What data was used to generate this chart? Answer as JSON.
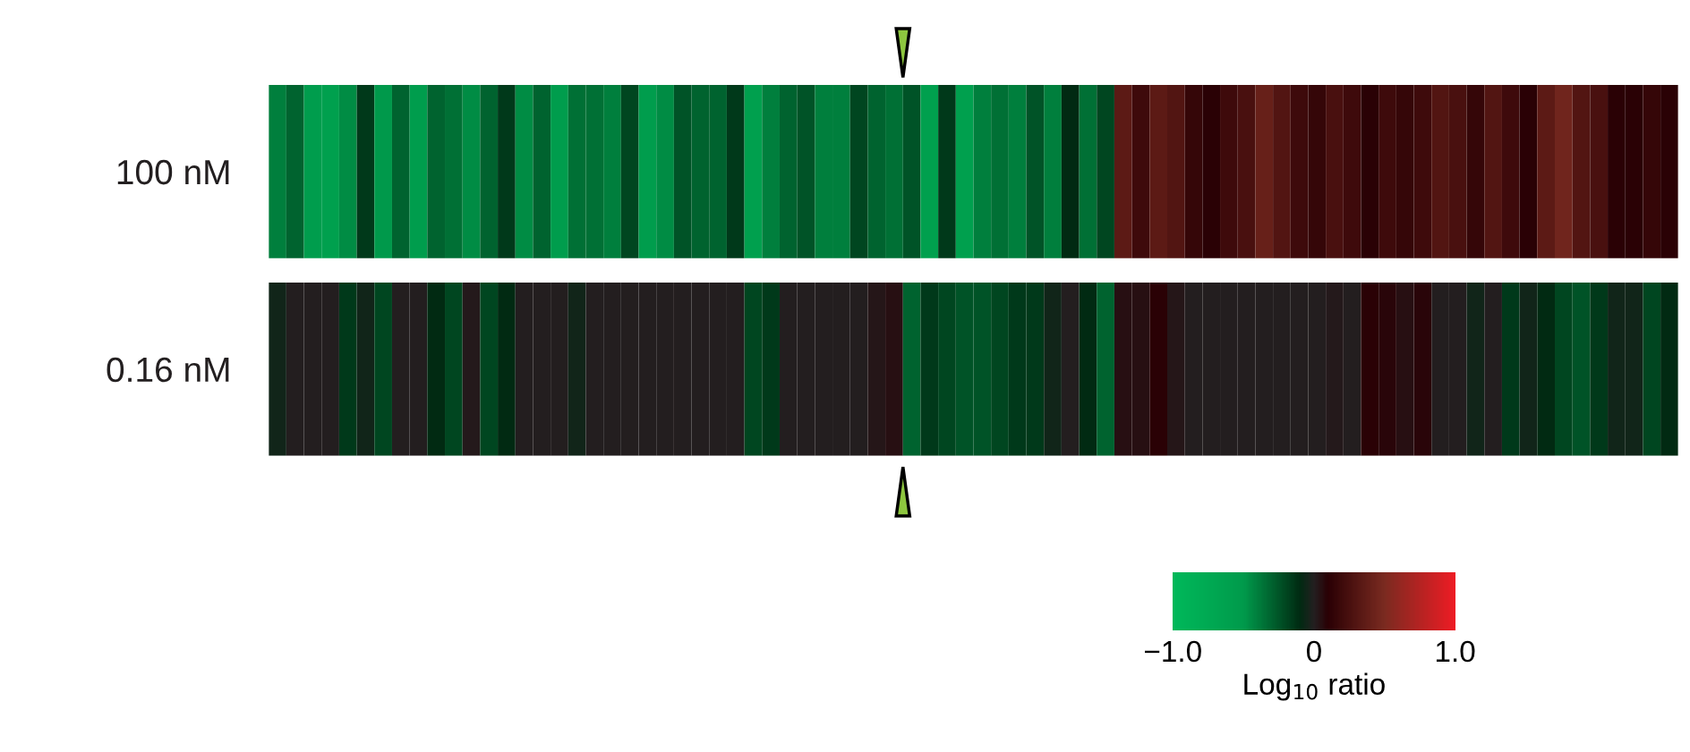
{
  "chart_data": {
    "type": "heatmap",
    "categories": [
      null,
      null,
      null,
      null,
      null,
      null,
      null,
      null,
      null,
      null,
      null,
      null,
      null,
      null,
      null,
      null,
      null,
      null,
      null,
      null,
      null,
      null,
      null,
      null,
      null,
      null,
      null,
      null,
      null,
      null,
      null,
      null,
      null,
      null,
      null,
      null,
      null,
      null,
      null,
      null,
      null,
      null,
      null,
      null,
      null,
      null,
      null,
      null,
      null,
      null,
      null,
      null,
      null,
      null,
      null,
      null,
      null,
      null,
      null,
      null,
      null,
      null,
      null,
      null,
      null,
      null,
      null,
      null,
      null,
      null,
      null,
      null,
      null,
      null,
      null,
      null,
      null,
      null,
      null,
      null
    ],
    "y_categories": [
      "100 nM",
      "0.16 nM"
    ],
    "cells": [
      [
        -0.4,
        -0.3,
        -0.55,
        -0.6,
        -0.45,
        -0.15,
        -0.5,
        -0.3,
        -0.55,
        -0.3,
        -0.35,
        -0.45,
        -0.3,
        -0.15,
        -0.45,
        -0.3,
        -0.55,
        -0.35,
        -0.35,
        -0.4,
        -0.2,
        -0.55,
        -0.45,
        -0.25,
        -0.3,
        -0.3,
        -0.15,
        -0.6,
        -0.4,
        -0.3,
        -0.25,
        -0.4,
        -0.4,
        -0.2,
        -0.3,
        -0.35,
        -0.25,
        -0.6,
        -0.15,
        -0.6,
        -0.4,
        -0.35,
        -0.4,
        -0.25,
        -0.4,
        -0.1,
        -0.35,
        -0.2,
        0.35,
        0.2,
        0.35,
        0.3,
        0.15,
        0.1,
        0.2,
        0.25,
        0.4,
        0.3,
        0.2,
        0.15,
        0.25,
        0.2,
        0.1,
        0.2,
        0.15,
        0.2,
        0.3,
        0.25,
        0.15,
        0.3,
        0.2,
        0.1,
        0.35,
        0.45,
        0.3,
        0.25,
        0.1,
        0.1,
        0.15,
        0.1
      ],
      [
        -0.05,
        0,
        0,
        0,
        -0.15,
        -0.05,
        -0.2,
        0,
        0,
        -0.1,
        -0.2,
        0.02,
        -0.2,
        -0.1,
        0,
        0,
        0,
        -0.05,
        0,
        0,
        0,
        0,
        0,
        0,
        0,
        0,
        0,
        -0.2,
        -0.15,
        0,
        0,
        0,
        0,
        0,
        0.03,
        0.05,
        -0.3,
        -0.15,
        -0.2,
        -0.25,
        -0.25,
        -0.2,
        -0.15,
        -0.15,
        -0.05,
        0,
        -0.1,
        -0.3,
        0.05,
        0.05,
        0.1,
        0.03,
        0,
        0,
        0,
        0,
        0,
        0,
        0,
        0,
        0.02,
        0,
        0.1,
        0.08,
        0.05,
        0.08,
        0,
        0,
        -0.05,
        0,
        -0.15,
        -0.05,
        -0.1,
        -0.2,
        -0.25,
        -0.15,
        -0.05,
        -0.05,
        -0.2,
        -0.1
      ]
    ],
    "clim": [
      -1,
      1
    ],
    "cticks": [
      {
        "value": -1,
        "label": "−1.0"
      },
      0,
      {
        "value": 1,
        "label": "1.0"
      }
    ],
    "clabel": "Log$_{10}$ ratio"
  }
}
